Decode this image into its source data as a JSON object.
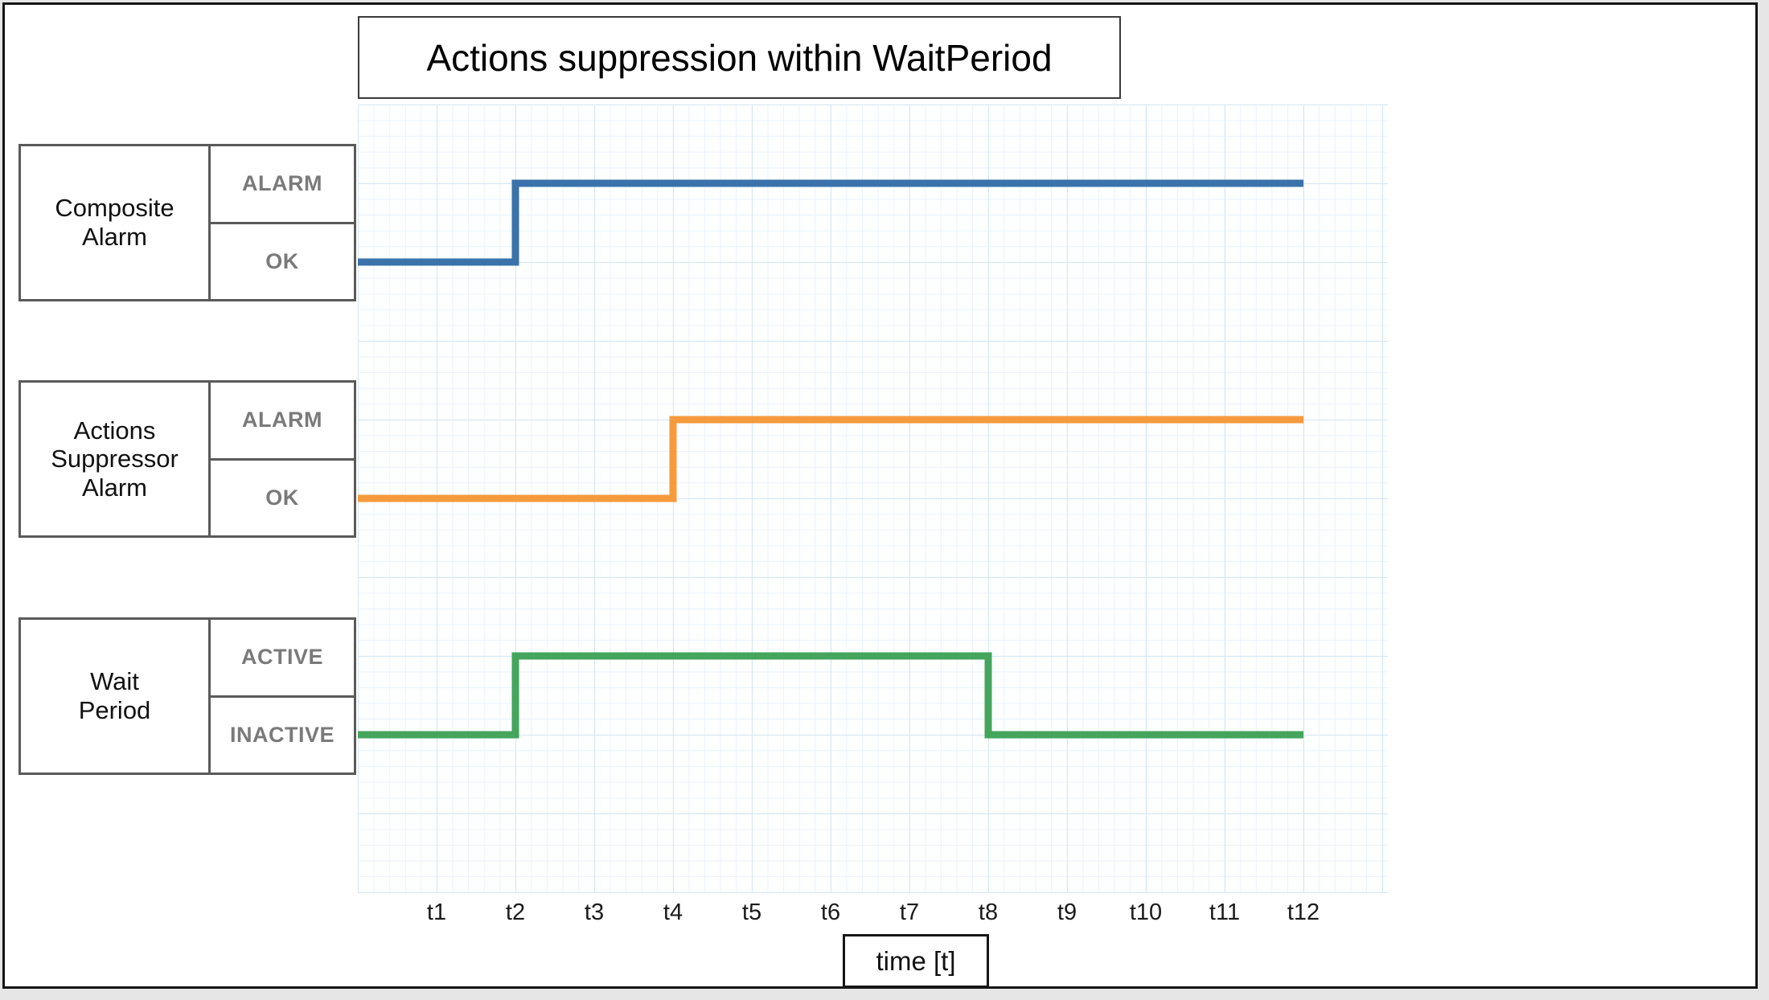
{
  "title": "Actions suppression within WaitPeriod",
  "x_axis": {
    "label": "time [t]",
    "ticks": [
      "t1",
      "t2",
      "t3",
      "t4",
      "t5",
      "t6",
      "t7",
      "t8",
      "t9",
      "t10",
      "t11",
      "t12"
    ]
  },
  "signals": [
    {
      "name": "Composite Alarm",
      "name_lines": [
        "Composite",
        "Alarm"
      ],
      "high_label": "ALARM",
      "low_label": "OK",
      "color": "#3a72ab",
      "trace": [
        [
          0,
          "low"
        ],
        [
          2,
          "low"
        ],
        [
          2,
          "high"
        ],
        [
          12,
          "high"
        ]
      ]
    },
    {
      "name": "Actions Suppressor Alarm",
      "name_lines": [
        "Actions",
        "Suppressor",
        "Alarm"
      ],
      "high_label": "ALARM",
      "low_label": "OK",
      "color": "#f59b3d",
      "trace": [
        [
          0,
          "low"
        ],
        [
          4,
          "low"
        ],
        [
          4,
          "high"
        ],
        [
          12,
          "high"
        ]
      ]
    },
    {
      "name": "Wait Period",
      "name_lines": [
        "Wait",
        "Period"
      ],
      "high_label": "ACTIVE",
      "low_label": "INACTIVE",
      "color": "#44a55c",
      "trace": [
        [
          0,
          "low"
        ],
        [
          2,
          "low"
        ],
        [
          2,
          "high"
        ],
        [
          8,
          "high"
        ],
        [
          8,
          "low"
        ],
        [
          12,
          "low"
        ]
      ]
    }
  ],
  "grid": {
    "minor_color": "#eaf3fa",
    "major_color": "#d5e6f3"
  }
}
